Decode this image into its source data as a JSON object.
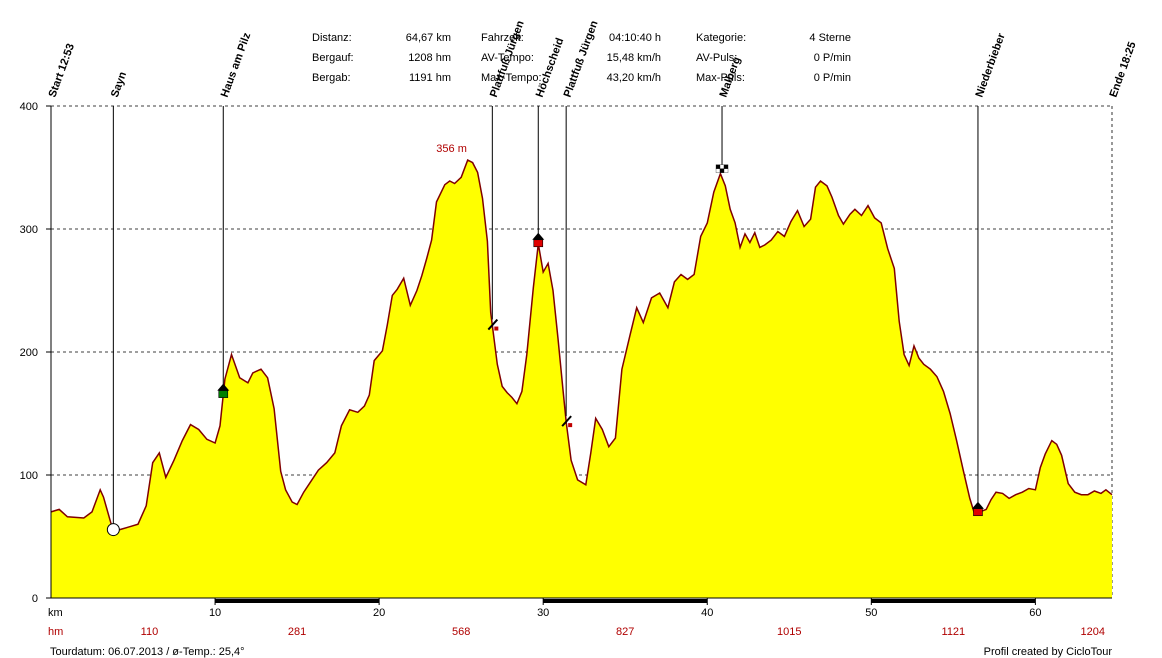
{
  "stats": [
    {
      "label": "Distanz:",
      "value": "64,67 km"
    },
    {
      "label": "Bergauf:",
      "value": "1208 hm"
    },
    {
      "label": "Bergab:",
      "value": "1191 hm"
    },
    {
      "label": "Fahrzeit:",
      "value": "04:10:40 h"
    },
    {
      "label": "AV-Tempo:",
      "value": "15,48 km/h"
    },
    {
      "label": "Max-Tempo:",
      "value": "43,20 km/h"
    },
    {
      "label": "Kategorie:",
      "value": "4 Sterne"
    },
    {
      "label": "AV-Puls:",
      "value": "0 P/min"
    },
    {
      "label": "Max-Puls:",
      "value": "0 P/min"
    }
  ],
  "footer": {
    "left": "Tourdatum: 06.07.2013  /  ø-Temp.: 25,4°",
    "right": "Profil created by CicloTour"
  },
  "colors": {
    "fill": "#ffff00",
    "line": "#800000",
    "hm": "#b00000"
  },
  "chart_data": {
    "type": "area",
    "xlabel": "km",
    "ylabel": "",
    "xlim": [
      0,
      64.67
    ],
    "ylim": [
      0,
      400
    ],
    "yticks": [
      0,
      100,
      200,
      300,
      400
    ],
    "xticks": [
      10,
      20,
      30,
      40,
      50,
      60
    ],
    "grid": true,
    "max_label": "356 m",
    "max_point": {
      "x": 24.6,
      "y": 356
    },
    "cumulative_hm": [
      {
        "x": 6,
        "label": "110"
      },
      {
        "x": 15,
        "label": "281"
      },
      {
        "x": 25,
        "label": "568"
      },
      {
        "x": 35,
        "label": "827"
      },
      {
        "x": 45,
        "label": "1015"
      },
      {
        "x": 55,
        "label": "1121"
      },
      {
        "x": 63.5,
        "label": "1204"
      }
    ],
    "waypoints": [
      {
        "x": 0,
        "label": "Start 12:53",
        "marker": "none"
      },
      {
        "x": 3.8,
        "label": "Sayn",
        "marker": "circle"
      },
      {
        "x": 10.5,
        "label": "Haus am Pilz",
        "marker": "house-green"
      },
      {
        "x": 26.9,
        "label": "Plattfuß Jürgen",
        "marker": "tool"
      },
      {
        "x": 29.7,
        "label": "Höchscheid",
        "marker": "house-red"
      },
      {
        "x": 31.4,
        "label": "Plattfuß Jürgen",
        "marker": "tool"
      },
      {
        "x": 40.9,
        "label": "Malberg",
        "marker": "flag"
      },
      {
        "x": 56.5,
        "label": "Niederbieber",
        "marker": "house-red"
      },
      {
        "x": 64.67,
        "label": "Ende 18:25",
        "marker": "none"
      }
    ],
    "series": [
      {
        "x": [
          0,
          0.5,
          1,
          2,
          2.5,
          3,
          3.2,
          3.8,
          4.3,
          4.8,
          5.3,
          5.8,
          6.2,
          6.6,
          7,
          7.5,
          8,
          8.5,
          9,
          9.5,
          10,
          10.3,
          10.6,
          11,
          11.5,
          12,
          12.3,
          12.8,
          13.2,
          13.6,
          14,
          14.3,
          14.7,
          15,
          15.4,
          15.8,
          16.3,
          16.8,
          17.3,
          17.7,
          18.2,
          18.7,
          19.1,
          19.4,
          19.7,
          20.2,
          20.5,
          20.8,
          21.1,
          21.5,
          21.9,
          22.3,
          22.6,
          22.9,
          23.2,
          23.5,
          24,
          24.3,
          24.6,
          25,
          25.4,
          25.7,
          26,
          26.3,
          26.6,
          26.8,
          27.2,
          27.5,
          27.8,
          28.1,
          28.4,
          28.7,
          29,
          29.4,
          29.7,
          30,
          30.3,
          30.6,
          30.9,
          31.2,
          31.4,
          31.7,
          32.1,
          32.6,
          32.9,
          33.2,
          33.6,
          34,
          34.4,
          34.8,
          35.3,
          35.7,
          36.1,
          36.6,
          37.1,
          37.6,
          38,
          38.4,
          38.8,
          39.2,
          39.6,
          40,
          40.4,
          40.8,
          41.1,
          41.4,
          41.7,
          42,
          42.3,
          42.6,
          42.9,
          43.2,
          43.5,
          43.9,
          44.3,
          44.7,
          45.1,
          45.5,
          45.9,
          46.3,
          46.6,
          46.9,
          47.3,
          47.6,
          48,
          48.3,
          48.7,
          49,
          49.4,
          49.8,
          50.2,
          50.6,
          51,
          51.4,
          51.7,
          52,
          52.3,
          52.6,
          52.9,
          53.2,
          53.6,
          54,
          54.4,
          54.8,
          55.2,
          55.6,
          56,
          56.3,
          56.6,
          57,
          57.3,
          57.6,
          58,
          58.4,
          58.8,
          59.2,
          59.6,
          60,
          60.3,
          60.6,
          61,
          61.3,
          61.6,
          62,
          62.4,
          62.8,
          63.2,
          63.6,
          64,
          64.3,
          64.67
        ],
        "y": [
          70,
          72,
          66,
          65,
          70,
          88,
          82,
          54,
          56,
          58,
          60,
          75,
          110,
          118,
          98,
          112,
          128,
          141,
          137,
          129,
          126,
          140,
          178,
          198,
          179,
          175,
          183,
          186,
          179,
          154,
          103,
          88,
          78,
          76,
          86,
          94,
          104,
          110,
          118,
          140,
          153,
          151,
          156,
          165,
          193,
          201,
          222,
          246,
          251,
          260,
          238,
          250,
          262,
          276,
          291,
          322,
          336,
          339,
          337,
          342,
          356,
          354,
          346,
          325,
          290,
          232,
          190,
          172,
          167,
          163,
          158,
          168,
          198,
          252,
          288,
          265,
          272,
          250,
          211,
          170,
          143,
          112,
          96,
          92,
          118,
          146,
          137,
          123,
          130,
          186,
          214,
          236,
          224,
          244,
          248,
          236,
          257,
          263,
          259,
          263,
          294,
          305,
          330,
          345,
          335,
          316,
          305,
          285,
          296,
          289,
          297,
          285,
          287,
          291,
          298,
          294,
          306,
          315,
          302,
          308,
          334,
          339,
          335,
          326,
          311,
          304,
          312,
          316,
          311,
          319,
          309,
          305,
          284,
          268,
          225,
          198,
          189,
          205,
          195,
          190,
          186,
          180,
          168,
          150,
          128,
          104,
          81,
          68,
          70,
          72,
          80,
          86,
          85,
          81,
          84,
          86,
          89,
          88,
          106,
          117,
          128,
          125,
          116,
          93,
          86,
          84,
          84,
          87,
          85,
          88,
          84
        ]
      }
    ]
  }
}
